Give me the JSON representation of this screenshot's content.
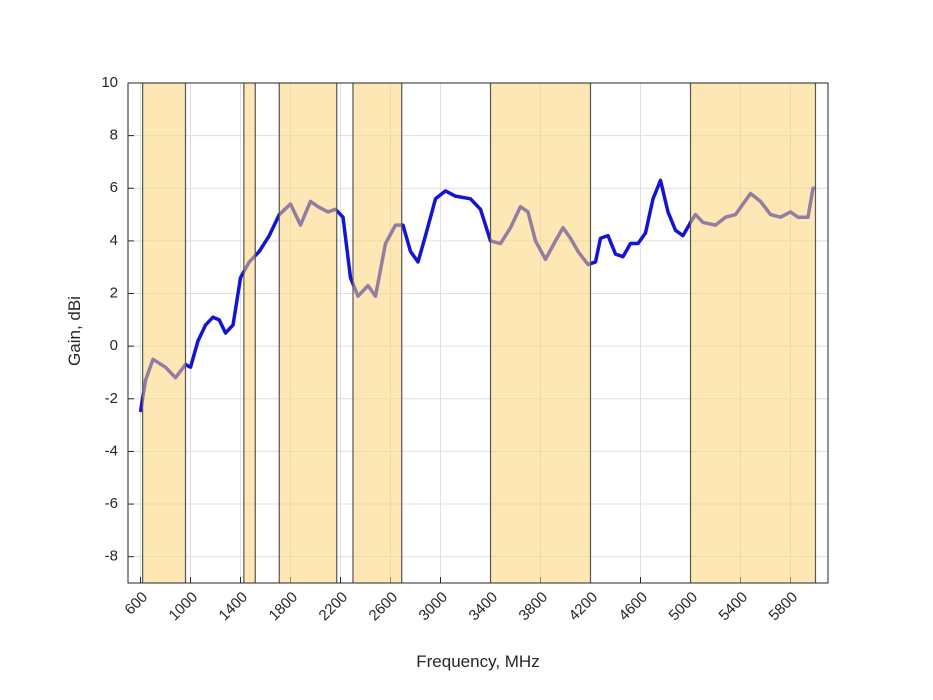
{
  "chart_data": {
    "type": "line",
    "xlabel": "Frequency, MHz",
    "ylabel": "Gain, dBi",
    "x": [
      600,
      640,
      700,
      800,
      880,
      960,
      1000,
      1060,
      1120,
      1180,
      1230,
      1280,
      1340,
      1400,
      1470,
      1550,
      1630,
      1710,
      1800,
      1880,
      1960,
      2020,
      2100,
      2160,
      2220,
      2280,
      2340,
      2420,
      2480,
      2560,
      2640,
      2700,
      2760,
      2820,
      2880,
      2960,
      3040,
      3120,
      3240,
      3320,
      3400,
      3480,
      3560,
      3640,
      3700,
      3760,
      3840,
      3920,
      3980,
      4040,
      4100,
      4180,
      4240,
      4280,
      4340,
      4400,
      4460,
      4520,
      4580,
      4640,
      4700,
      4760,
      4820,
      4880,
      4940,
      5000,
      5040,
      5100,
      5200,
      5280,
      5360,
      5420,
      5480,
      5560,
      5640,
      5720,
      5800,
      5860,
      5940,
      5980,
      6000
    ],
    "series": [
      {
        "color": "#1414d2",
        "values": [
          -2.5,
          -1.3,
          -0.5,
          -0.8,
          -1.2,
          -0.7,
          -0.8,
          0.2,
          0.8,
          1.1,
          1.0,
          0.5,
          0.8,
          2.6,
          3.2,
          3.6,
          4.2,
          5.0,
          5.4,
          4.6,
          5.5,
          5.3,
          5.1,
          5.2,
          4.9,
          2.6,
          1.9,
          2.3,
          1.9,
          3.9,
          4.6,
          4.6,
          3.6,
          3.2,
          4.2,
          5.6,
          5.9,
          5.7,
          5.6,
          5.2,
          4.0,
          3.9,
          4.5,
          5.3,
          5.1,
          4.0,
          3.3,
          4.0,
          4.5,
          4.1,
          3.6,
          3.1,
          3.2,
          4.1,
          4.2,
          3.5,
          3.4,
          3.9,
          3.9,
          4.3,
          5.6,
          6.3,
          5.1,
          4.4,
          4.2,
          4.7,
          5.0,
          4.7,
          4.6,
          4.9,
          5.0,
          5.4,
          5.8,
          5.5,
          5.0,
          4.9,
          5.1,
          4.9,
          4.9,
          6.0,
          6.0
        ]
      }
    ],
    "bands": [
      [
        617,
        960
      ],
      [
        1427,
        1518
      ],
      [
        1710,
        2170
      ],
      [
        2300,
        2690
      ],
      [
        3400,
        4200
      ],
      [
        5000,
        6000
      ]
    ],
    "band_color": "#fbd678",
    "xlim": [
      500,
      6100
    ],
    "ylim": [
      -9,
      10
    ],
    "xticks": [
      600,
      1000,
      1400,
      1800,
      2200,
      2600,
      3000,
      3400,
      3800,
      4200,
      4600,
      5000,
      5400,
      5800
    ],
    "yticks": [
      -8,
      -6,
      -4,
      -2,
      0,
      2,
      4,
      6,
      8,
      10
    ],
    "grid": true
  }
}
